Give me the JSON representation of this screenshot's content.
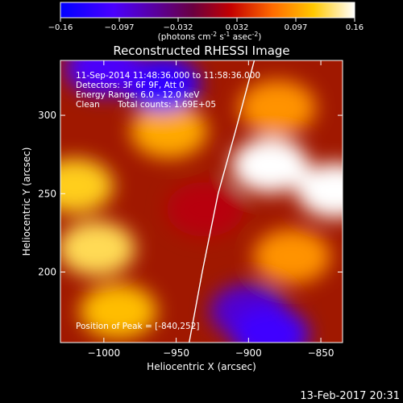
{
  "chart_data": {
    "type": "heatmap",
    "title": "Reconstructed RHESSI Image",
    "xlabel": "Heliocentric X (arcsec)",
    "ylabel": "Heliocentric Y (arcsec)",
    "xlim": [
      -1030,
      -835
    ],
    "ylim": [
      155,
      335
    ],
    "xticks": [
      -1000,
      -950,
      -900,
      -850
    ],
    "yticks": [
      200,
      250,
      300
    ],
    "colorbar": {
      "min": -0.16,
      "max": 0.16,
      "ticks": [
        "-0.16",
        "-0.097",
        "-0.032",
        "0.032",
        "0.097",
        "0.16"
      ],
      "label": "(photons cm",
      "label_sup1": "-2",
      "label_mid": " s",
      "label_sup2": "-1",
      "label_end": " asec",
      "label_sup3": "-2",
      "label_close": ")"
    },
    "annotations": {
      "time_range": "11-Sep-2014 11:48:36.000 to 11:58:36.000",
      "detectors": "Detectors: 3F 6F 9F, Att 0",
      "energy": "Energy Range: 6.0 - 12.0 keV",
      "method": "Clean",
      "counts": "Total counts: 1.69E+05",
      "peak": "Position of Peak = [-840,252]"
    },
    "limb_arc": [
      [
        -941,
        155
      ],
      [
        -932,
        200
      ],
      [
        -921,
        250
      ],
      [
        -909,
        290
      ],
      [
        -896,
        335
      ]
    ],
    "peak_xy": [
      -840,
      252
    ],
    "intensity_regions": [
      {
        "x": -885,
        "y": 268,
        "value": 0.16
      },
      {
        "x": -840,
        "y": 252,
        "value": 0.16
      },
      {
        "x": -1005,
        "y": 215,
        "value": 0.13
      },
      {
        "x": -1020,
        "y": 255,
        "value": 0.12
      },
      {
        "x": -955,
        "y": 290,
        "value": 0.1
      },
      {
        "x": -880,
        "y": 305,
        "value": 0.09
      },
      {
        "x": -870,
        "y": 210,
        "value": 0.09
      },
      {
        "x": -990,
        "y": 175,
        "value": 0.11
      },
      {
        "x": -960,
        "y": 320,
        "value": -0.12
      },
      {
        "x": -1000,
        "y": 330,
        "value": -0.1
      },
      {
        "x": -900,
        "y": 175,
        "value": -0.08
      },
      {
        "x": -885,
        "y": 160,
        "value": -0.11
      },
      {
        "x": -930,
        "y": 240,
        "value": 0.02
      }
    ]
  },
  "footer": {
    "date": "13-Feb-2017 20:31"
  }
}
